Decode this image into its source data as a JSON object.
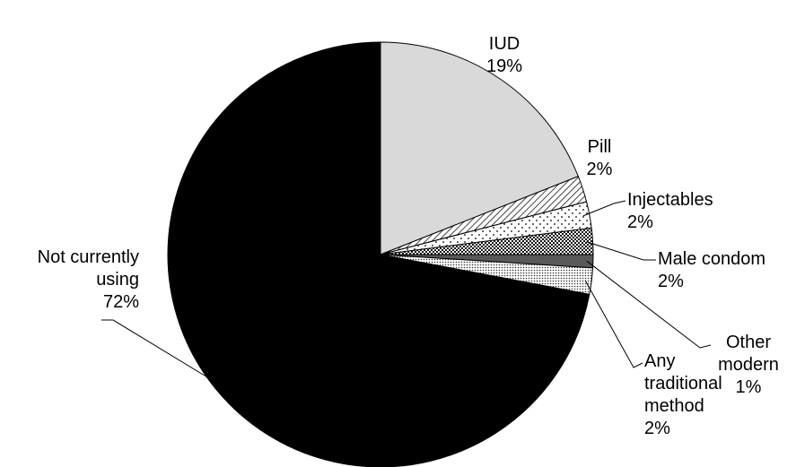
{
  "chart_data": {
    "type": "pie",
    "title": "",
    "slices": [
      {
        "label_lines": [
          "IUD"
        ],
        "percent_label": "19%",
        "value": 19,
        "fill": "#d9d9d9",
        "pattern": "solid"
      },
      {
        "label_lines": [
          "Pill"
        ],
        "percent_label": "2%",
        "value": 2,
        "fill": "#ffffff",
        "pattern": "diagonal-hatch"
      },
      {
        "label_lines": [
          "Injectables"
        ],
        "percent_label": "2%",
        "value": 2,
        "fill": "#ffffff",
        "pattern": "sparse-dots"
      },
      {
        "label_lines": [
          "Male condom"
        ],
        "percent_label": "2%",
        "value": 2,
        "fill": "#1a1a1a",
        "pattern": "checker"
      },
      {
        "label_lines": [
          "Other",
          "modern"
        ],
        "percent_label": "1%",
        "value": 1,
        "fill": "#595959",
        "pattern": "solid"
      },
      {
        "label_lines": [
          "Any",
          "traditional",
          "method"
        ],
        "percent_label": "2%",
        "value": 2,
        "fill": "#ffffff",
        "pattern": "dense-dots"
      },
      {
        "label_lines": [
          "Not currently",
          "using"
        ],
        "percent_label": "72%",
        "value": 72,
        "fill": "#000000",
        "pattern": "solid"
      }
    ],
    "start": "12 o'clock",
    "direction": "clockwise",
    "legend": "none (labels beside slices with leader lines)"
  }
}
